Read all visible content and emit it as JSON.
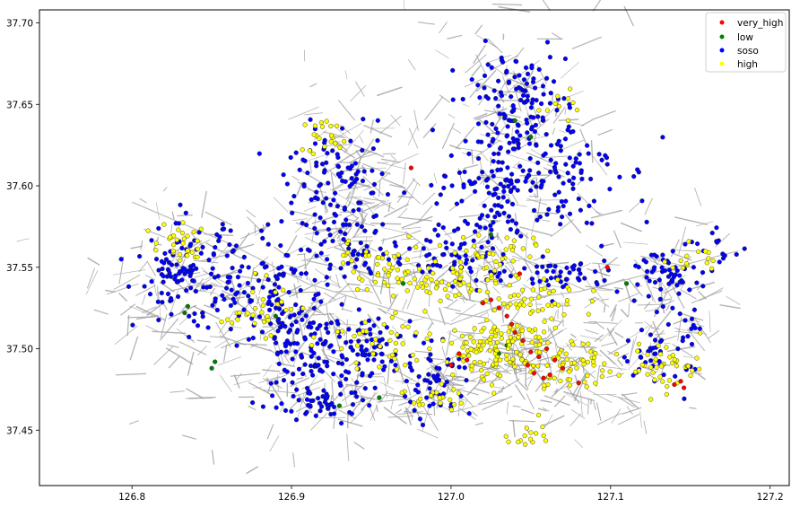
{
  "chart_data": {
    "type": "scatter",
    "title": "",
    "xlabel": "",
    "ylabel": "",
    "xlim": [
      126.742,
      127.212
    ],
    "ylim": [
      37.416,
      37.708
    ],
    "x_ticks": [
      {
        "value": 126.8,
        "label": "126.8"
      },
      {
        "value": 126.9,
        "label": "126.9"
      },
      {
        "value": 127.0,
        "label": "127.0"
      },
      {
        "value": 127.1,
        "label": "127.1"
      },
      {
        "value": 127.2,
        "label": "127.2"
      }
    ],
    "y_ticks": [
      {
        "value": 37.45,
        "label": "37.45"
      },
      {
        "value": 37.5,
        "label": "37.50"
      },
      {
        "value": 37.55,
        "label": "37.55"
      },
      {
        "value": 37.6,
        "label": "37.60"
      },
      {
        "value": 37.65,
        "label": "37.65"
      },
      {
        "value": 37.7,
        "label": "37.70"
      }
    ],
    "grid": false,
    "legend_position": "top-right",
    "background_map": "gray road network",
    "road_color": "#9a9a9a",
    "series": [
      {
        "name": "very_high",
        "color": "#ff0000",
        "points": [
          [
            127.04,
            37.51
          ],
          [
            127.045,
            37.505
          ],
          [
            127.05,
            37.498
          ],
          [
            127.055,
            37.495
          ],
          [
            127.06,
            37.5
          ],
          [
            127.065,
            37.493
          ],
          [
            127.07,
            37.488
          ],
          [
            127.048,
            37.49
          ],
          [
            127.052,
            37.485
          ],
          [
            127.058,
            37.482
          ],
          [
            127.035,
            37.52
          ],
          [
            127.03,
            37.525
          ],
          [
            127.025,
            37.53
          ],
          [
            127.02,
            37.528
          ],
          [
            127.14,
            37.478
          ],
          [
            127.144,
            37.48
          ],
          [
            127.146,
            37.476
          ],
          [
            127.098,
            37.55
          ],
          [
            127.043,
            37.546
          ],
          [
            126.975,
            37.611
          ],
          [
            127.0,
            37.49
          ],
          [
            127.005,
            37.497
          ],
          [
            127.01,
            37.493
          ],
          [
            127.062,
            37.484
          ],
          [
            127.08,
            37.479
          ],
          [
            127.038,
            37.515
          ]
        ]
      },
      {
        "name": "low",
        "color": "#008000",
        "points": [
          [
            126.833,
            37.522
          ],
          [
            126.835,
            37.526
          ],
          [
            126.85,
            37.488
          ],
          [
            126.852,
            37.492
          ],
          [
            127.04,
            37.64
          ],
          [
            127.05,
            37.63
          ],
          [
            126.93,
            37.465
          ],
          [
            126.955,
            37.47
          ],
          [
            127.03,
            37.497
          ],
          [
            127.035,
            37.502
          ],
          [
            127.11,
            37.54
          ],
          [
            126.97,
            37.54
          ],
          [
            127.025,
            37.57
          ],
          [
            126.89,
            37.52
          ]
        ]
      },
      {
        "name": "soso",
        "color": "#0000ff",
        "clusters": [
          {
            "center": [
              126.835,
              37.545
            ],
            "spread": [
              0.03,
              0.028
            ],
            "count": 120
          },
          {
            "center": [
              126.88,
              37.535
            ],
            "spread": [
              0.03,
              0.03
            ],
            "count": 70
          },
          {
            "center": [
              126.905,
              37.5
            ],
            "spread": [
              0.025,
              0.035
            ],
            "count": 130
          },
          {
            "center": [
              126.95,
              37.5
            ],
            "spread": [
              0.03,
              0.02
            ],
            "count": 80
          },
          {
            "center": [
              126.925,
              37.47
            ],
            "spread": [
              0.02,
              0.015
            ],
            "count": 40
          },
          {
            "center": [
              126.93,
              37.6
            ],
            "spread": [
              0.03,
              0.03
            ],
            "count": 100
          },
          {
            "center": [
              126.935,
              37.56
            ],
            "spread": [
              0.04,
              0.02
            ],
            "count": 60
          },
          {
            "center": [
              127.04,
              37.65
            ],
            "spread": [
              0.03,
              0.03
            ],
            "count": 130
          },
          {
            "center": [
              127.06,
              37.61
            ],
            "spread": [
              0.04,
              0.03
            ],
            "count": 110
          },
          {
            "center": [
              127.02,
              37.59
            ],
            "spread": [
              0.03,
              0.03
            ],
            "count": 80
          },
          {
            "center": [
              127.14,
              37.545
            ],
            "spread": [
              0.02,
              0.02
            ],
            "count": 60
          },
          {
            "center": [
              127.17,
              37.56
            ],
            "spread": [
              0.01,
              0.01
            ],
            "count": 12
          },
          {
            "center": [
              127.13,
              37.5
            ],
            "spread": [
              0.02,
              0.02
            ],
            "count": 50
          },
          {
            "center": [
              126.99,
              37.48
            ],
            "spread": [
              0.02,
              0.02
            ],
            "count": 50
          },
          {
            "center": [
              127.07,
              37.545
            ],
            "spread": [
              0.03,
              0.012
            ],
            "count": 50
          },
          {
            "center": [
              127.0,
              37.555
            ],
            "spread": [
              0.035,
              0.015
            ],
            "count": 60
          }
        ]
      },
      {
        "name": "high",
        "color": "#ffff00",
        "clusters": [
          {
            "center": [
              127.03,
              37.5
            ],
            "spread": [
              0.035,
              0.018
            ],
            "count": 130
          },
          {
            "center": [
              127.075,
              37.49
            ],
            "spread": [
              0.035,
              0.012
            ],
            "count": 60
          },
          {
            "center": [
              126.99,
              37.54
            ],
            "spread": [
              0.05,
              0.01
            ],
            "count": 70
          },
          {
            "center": [
              126.83,
              37.565
            ],
            "spread": [
              0.015,
              0.012
            ],
            "count": 30
          },
          {
            "center": [
              126.88,
              37.525
            ],
            "spread": [
              0.02,
              0.015
            ],
            "count": 30
          },
          {
            "center": [
              126.95,
              37.505
            ],
            "spread": [
              0.03,
              0.015
            ],
            "count": 40
          },
          {
            "center": [
              126.92,
              37.63
            ],
            "spread": [
              0.012,
              0.012
            ],
            "count": 20
          },
          {
            "center": [
              127.06,
              37.53
            ],
            "spread": [
              0.03,
              0.012
            ],
            "count": 40
          },
          {
            "center": [
              127.135,
              37.49
            ],
            "spread": [
              0.02,
              0.015
            ],
            "count": 40
          },
          {
            "center": [
              127.05,
              37.45
            ],
            "spread": [
              0.012,
              0.01
            ],
            "count": 15
          },
          {
            "center": [
              127.03,
              37.56
            ],
            "spread": [
              0.03,
              0.01
            ],
            "count": 30
          },
          {
            "center": [
              127.07,
              37.65
            ],
            "spread": [
              0.01,
              0.01
            ],
            "count": 10
          },
          {
            "center": [
              127.15,
              37.555
            ],
            "spread": [
              0.015,
              0.008
            ],
            "count": 15
          },
          {
            "center": [
              126.99,
              37.47
            ],
            "spread": [
              0.015,
              0.008
            ],
            "count": 20
          },
          {
            "center": [
              126.96,
              37.555
            ],
            "spread": [
              0.03,
              0.012
            ],
            "count": 30
          }
        ]
      }
    ],
    "legend": [
      {
        "label": "very_high",
        "color": "#ff0000"
      },
      {
        "label": "low",
        "color": "#008000"
      },
      {
        "label": "soso",
        "color": "#0000ff"
      },
      {
        "label": "high",
        "color": "#ffff00"
      }
    ]
  }
}
